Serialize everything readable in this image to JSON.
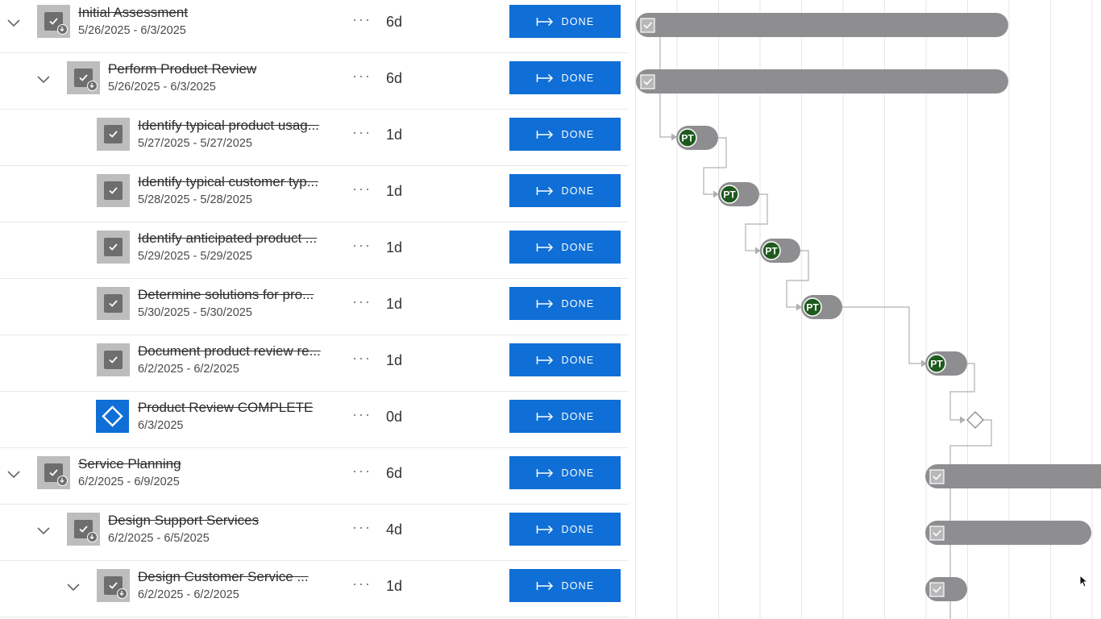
{
  "done_label": "DONE",
  "more_label": "···",
  "avatar_initials": "PT",
  "colors": {
    "accent": "#0f6fd6",
    "bar": "#8e8e91",
    "avatar": "#1e5a1e",
    "grid_line": "#e6e6e6",
    "connector": "#b0b0b0"
  },
  "tasks": [
    {
      "name": "Initial Assessment",
      "dates": "5/26/2025 - 6/3/2025",
      "duration": "6d",
      "level": 0,
      "type": "summary",
      "expanded": true
    },
    {
      "name": "Perform Product Review",
      "dates": "5/26/2025 - 6/3/2025",
      "duration": "6d",
      "level": 1,
      "type": "summary",
      "expanded": true
    },
    {
      "name": "Identify typical product usag...",
      "dates": "5/27/2025 - 5/27/2025",
      "duration": "1d",
      "level": 2,
      "type": "task"
    },
    {
      "name": "Identify typical customer typ...",
      "dates": "5/28/2025 - 5/28/2025",
      "duration": "1d",
      "level": 2,
      "type": "task"
    },
    {
      "name": "Identify anticipated product ...",
      "dates": "5/29/2025 - 5/29/2025",
      "duration": "1d",
      "level": 2,
      "type": "task"
    },
    {
      "name": "Determine solutions for pro...",
      "dates": "5/30/2025 - 5/30/2025",
      "duration": "1d",
      "level": 2,
      "type": "task"
    },
    {
      "name": "Document product review re...",
      "dates": "6/2/2025 - 6/2/2025",
      "duration": "1d",
      "level": 2,
      "type": "task"
    },
    {
      "name": "Product Review COMPLETE",
      "dates": "6/3/2025",
      "duration": "0d",
      "level": 2,
      "type": "milestone"
    },
    {
      "name": "Service Planning",
      "dates": "6/2/2025 - 6/9/2025",
      "duration": "6d",
      "level": 0,
      "type": "summary",
      "expanded": true
    },
    {
      "name": "Design Support Services",
      "dates": "6/2/2025 - 6/5/2025",
      "duration": "4d",
      "level": 1,
      "type": "summary",
      "expanded": true
    },
    {
      "name": "Design Customer Service ...",
      "dates": "6/2/2025 - 6/2/2025",
      "duration": "1d",
      "level": 2,
      "type": "summary",
      "expanded": true
    }
  ]
}
